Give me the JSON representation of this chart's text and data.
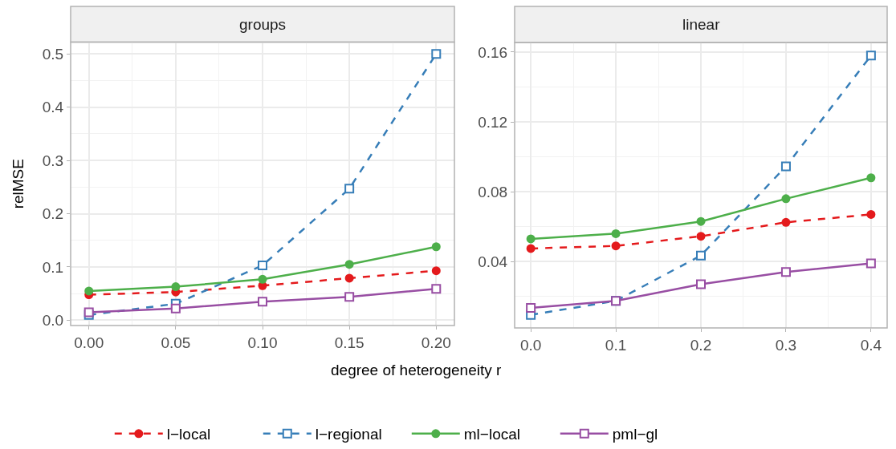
{
  "chart_data": [
    {
      "type": "line",
      "title": "groups",
      "xlabel": "degree of heterogeneity r",
      "ylabel": "relMSE",
      "x": [
        0,
        0.05,
        0.1,
        0.15,
        0.2
      ],
      "xlim": [
        -0.0105,
        0.2105
      ],
      "ylim": [
        -0.01,
        0.522
      ],
      "xticks": [
        {
          "value": 0,
          "label": "0.00"
        },
        {
          "value": 0.05,
          "label": "0.05"
        },
        {
          "value": 0.1,
          "label": "0.10"
        },
        {
          "value": 0.15,
          "label": "0.15"
        },
        {
          "value": 0.2,
          "label": "0.20"
        }
      ],
      "yticks": [
        {
          "value": 0,
          "label": "0.0"
        },
        0.1,
        0.2,
        0.3,
        0.4,
        0.5
      ],
      "grid": true,
      "legend": "bottom",
      "series": [
        {
          "name": "l−local",
          "color": "#e41a1c",
          "marker": "circle",
          "line_style": "dashed",
          "values": [
            0.048,
            0.053,
            0.065,
            0.079,
            0.093
          ]
        },
        {
          "name": "l−regional",
          "color": "#377eb8",
          "marker": "square",
          "line_style": "dashed",
          "values": [
            0.01,
            0.031,
            0.103,
            0.247,
            0.5
          ]
        },
        {
          "name": "ml−local",
          "color": "#4daf4a",
          "marker": "circle",
          "line_style": "solid",
          "values": [
            0.055,
            0.063,
            0.077,
            0.105,
            0.138
          ]
        },
        {
          "name": "pml−gl",
          "color": "#984ea3",
          "marker": "square",
          "line_style": "solid",
          "values": [
            0.015,
            0.022,
            0.035,
            0.044,
            0.059
          ]
        }
      ]
    },
    {
      "type": "line",
      "title": "linear",
      "x": [
        0,
        0.1,
        0.2,
        0.3,
        0.4
      ],
      "xlim": [
        -0.019,
        0.419
      ],
      "ylim": [
        0.002,
        0.1655
      ],
      "xticks": [
        {
          "value": 0,
          "label": "0.0"
        },
        0.1,
        0.2,
        0.3,
        0.4
      ],
      "yticks": [
        0.04,
        0.08,
        0.12,
        0.16
      ],
      "grid": true,
      "series": [
        {
          "color": "#e41a1c",
          "marker": "circle",
          "line_style": "dashed",
          "values": [
            0.0475,
            0.049,
            0.0545,
            0.0625,
            0.067
          ]
        },
        {
          "color": "#377eb8",
          "marker": "square",
          "line_style": "dashed",
          "values": [
            0.0095,
            0.0175,
            0.0435,
            0.0945,
            0.158
          ]
        },
        {
          "color": "#4daf4a",
          "marker": "circle",
          "line_style": "solid",
          "values": [
            0.053,
            0.056,
            0.063,
            0.076,
            0.088
          ]
        },
        {
          "color": "#984ea3",
          "marker": "square",
          "line_style": "solid",
          "values": [
            0.0135,
            0.0175,
            0.027,
            0.034,
            0.039
          ]
        }
      ]
    }
  ]
}
